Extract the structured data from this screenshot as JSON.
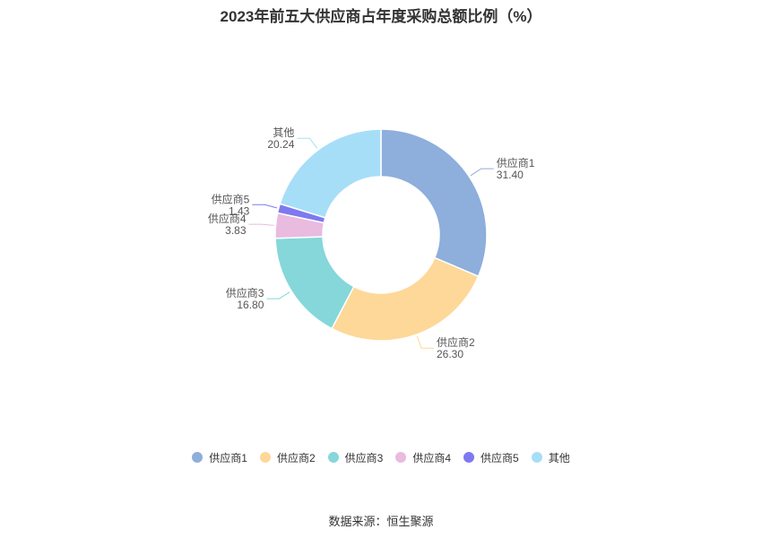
{
  "chart_data": {
    "type": "pie",
    "title": "2023年前五大供应商占年度采购总额比例（%）",
    "donut": true,
    "legend_position": "bottom",
    "slices": [
      {
        "label": "供应商1",
        "value": 31.4,
        "display": "31.40",
        "color": "#8eaedb"
      },
      {
        "label": "供应商2",
        "value": 26.3,
        "display": "26.30",
        "color": "#fed898"
      },
      {
        "label": "供应商3",
        "value": 16.8,
        "display": "16.80",
        "color": "#85d7da"
      },
      {
        "label": "供应商4",
        "value": 3.83,
        "display": "3.83",
        "color": "#e8bbdf"
      },
      {
        "label": "供应商5",
        "value": 1.43,
        "display": "1.43",
        "color": "#7e79ef"
      },
      {
        "label": "其他",
        "value": 20.24,
        "display": "20.24",
        "color": "#a6def8"
      }
    ]
  },
  "footer": {
    "source": "数据来源：恒生聚源"
  }
}
